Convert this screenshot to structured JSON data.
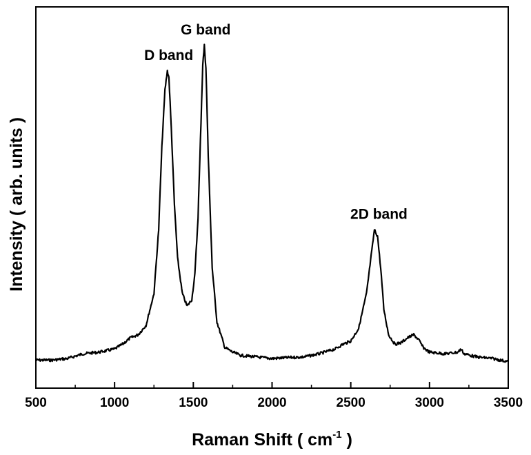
{
  "chart_data": {
    "type": "line",
    "title": "",
    "xlabel": "Raman Shift ( cm",
    "xlabel_superscript": "-1",
    "xlabel_suffix": " )",
    "ylabel": "Intensity ( arb. units )",
    "xlim": [
      500,
      3500
    ],
    "ylim": [
      0,
      1
    ],
    "grid": false,
    "legend": "none",
    "x_ticks": [
      "500",
      "1000",
      "1500",
      "2000",
      "2500",
      "3000",
      "3500"
    ],
    "x_tick_values": [
      500,
      1000,
      1500,
      2000,
      2500,
      3000,
      3500
    ],
    "series": [
      {
        "color": "#000000",
        "x": [
          500,
          600,
          700,
          800,
          900,
          1000,
          1050,
          1100,
          1150,
          1200,
          1250,
          1280,
          1300,
          1320,
          1335,
          1345,
          1360,
          1380,
          1400,
          1430,
          1460,
          1490,
          1510,
          1530,
          1545,
          1560,
          1570,
          1580,
          1595,
          1620,
          1650,
          1700,
          1750,
          1800,
          1900,
          2000,
          2100,
          2200,
          2300,
          2400,
          2450,
          2500,
          2550,
          2600,
          2630,
          2650,
          2670,
          2690,
          2710,
          2740,
          2780,
          2820,
          2860,
          2900,
          2930,
          2960,
          3000,
          3100,
          3180,
          3200,
          3220,
          3300,
          3400,
          3500
        ],
        "y": [
          0.01,
          0.01,
          0.015,
          0.03,
          0.035,
          0.045,
          0.06,
          0.08,
          0.09,
          0.12,
          0.22,
          0.42,
          0.68,
          0.86,
          0.92,
          0.9,
          0.74,
          0.5,
          0.33,
          0.22,
          0.18,
          0.2,
          0.28,
          0.46,
          0.7,
          0.94,
          1.0,
          0.93,
          0.65,
          0.3,
          0.13,
          0.05,
          0.035,
          0.025,
          0.02,
          0.015,
          0.018,
          0.02,
          0.03,
          0.045,
          0.06,
          0.07,
          0.11,
          0.22,
          0.34,
          0.42,
          0.4,
          0.3,
          0.17,
          0.09,
          0.06,
          0.065,
          0.08,
          0.09,
          0.075,
          0.05,
          0.035,
          0.03,
          0.035,
          0.045,
          0.03,
          0.02,
          0.015,
          0.005
        ]
      }
    ],
    "annotations": [
      {
        "text": "G band",
        "x": 1570,
        "y": 1.0
      },
      {
        "text": "D band",
        "x": 1335,
        "y": 0.92
      },
      {
        "text": "2D band",
        "x": 2670,
        "y": 0.42
      }
    ]
  }
}
